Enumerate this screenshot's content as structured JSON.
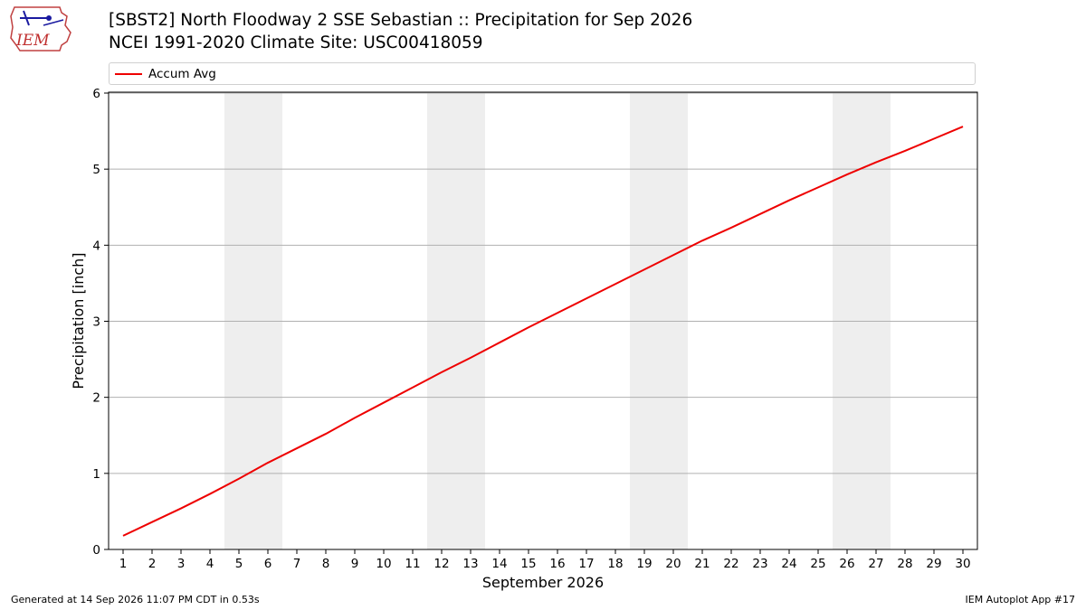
{
  "header": {
    "logo_text": "IEM",
    "title_line1": "[SBST2] North Floodway 2 SSE Sebastian :: Precipitation for Sep 2026",
    "title_line2": "NCEI 1991-2020 Climate Site: USC00418059"
  },
  "footer": {
    "generated": "Generated at 14 Sep 2026 11:07 PM CDT in 0.53s",
    "app": "IEM Autoplot App #17"
  },
  "colors": {
    "line": "#ee0000",
    "weekend_band": "#eeeeee",
    "grid": "#b0b0b0"
  },
  "chart_data": {
    "type": "line",
    "xlabel": "September 2026",
    "ylabel": "Precipitation [inch]",
    "xlim": [
      1,
      30
    ],
    "ylim": [
      0,
      6
    ],
    "yticks": [
      0,
      1,
      2,
      3,
      4,
      5,
      6
    ],
    "x": [
      1,
      2,
      3,
      4,
      5,
      6,
      7,
      8,
      9,
      10,
      11,
      12,
      13,
      14,
      15,
      16,
      17,
      18,
      19,
      20,
      21,
      22,
      23,
      24,
      25,
      26,
      27,
      28,
      29,
      30
    ],
    "series": [
      {
        "name": "Accum Avg",
        "values": [
          0.18,
          0.36,
          0.54,
          0.73,
          0.93,
          1.14,
          1.33,
          1.52,
          1.73,
          1.93,
          2.13,
          2.33,
          2.52,
          2.72,
          2.92,
          3.11,
          3.3,
          3.49,
          3.68,
          3.87,
          4.06,
          4.23,
          4.41,
          4.59,
          4.76,
          4.93,
          5.09,
          5.24,
          5.4,
          5.56
        ]
      }
    ],
    "weekend_bands": [
      [
        5,
        6
      ],
      [
        12,
        13
      ],
      [
        19,
        20
      ],
      [
        26,
        27
      ]
    ],
    "grid": "horizontal",
    "legend_position": "top"
  }
}
